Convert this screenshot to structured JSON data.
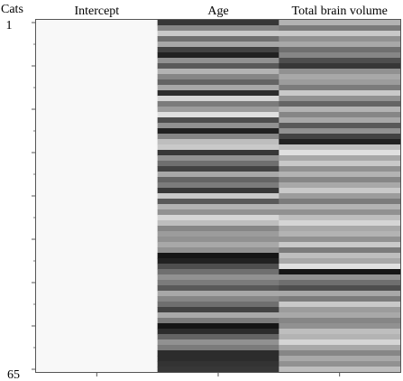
{
  "chart_data": {
    "type": "heatmap",
    "title": "",
    "row_axis_label": "Cats",
    "row_tick_first": "1",
    "row_tick_last": "65",
    "n_rows": 65,
    "columns": [
      "Intercept",
      "Age",
      "Total brain volume"
    ],
    "value_range": [
      0,
      1
    ],
    "colormap": "grayscale: 0 = black, 1 = white",
    "values": [
      [
        1,
        1,
        1,
        1,
        1,
        1,
        1,
        1,
        1,
        1,
        1,
        1,
        1,
        1,
        1,
        1,
        1,
        1,
        1,
        1,
        1,
        1,
        1,
        1,
        1,
        1,
        1,
        1,
        1,
        1,
        1,
        1,
        1,
        1,
        1,
        1,
        1,
        1,
        1,
        1,
        1,
        1,
        1,
        1,
        1,
        1,
        1,
        1,
        1,
        1,
        1,
        1,
        1,
        1,
        1,
        1,
        1,
        1,
        1,
        1,
        1,
        1,
        1,
        1,
        1
      ],
      [
        0.2,
        0.55,
        0.85,
        0.45,
        0.7,
        0.25,
        0.1,
        0.6,
        0.35,
        0.75,
        0.55,
        0.4,
        0.7,
        0.15,
        0.9,
        0.5,
        0.65,
        0.95,
        0.3,
        0.6,
        0.1,
        0.55,
        0.8,
        0.85,
        0.2,
        0.6,
        0.45,
        0.25,
        0.7,
        0.4,
        0.5,
        0.2,
        0.85,
        0.35,
        0.75,
        0.6,
        0.9,
        0.8,
        0.55,
        0.65,
        0.6,
        0.7,
        0.6,
        0.05,
        0.1,
        0.3,
        0.45,
        0.6,
        0.5,
        0.35,
        0.7,
        0.55,
        0.45,
        0.25,
        0.7,
        0.5,
        0.05,
        0.15,
        0.4,
        0.6,
        0.5,
        0.15,
        0.15,
        0.18,
        0.2
      ],
      [
        0.75,
        0.5,
        0.85,
        0.6,
        0.7,
        0.45,
        0.55,
        0.3,
        0.2,
        0.6,
        0.7,
        0.65,
        0.5,
        0.85,
        0.6,
        0.4,
        0.75,
        0.55,
        0.7,
        0.35,
        0.6,
        0.25,
        0.1,
        0.8,
        0.95,
        0.7,
        0.85,
        0.6,
        0.75,
        0.55,
        0.7,
        0.85,
        0.65,
        0.5,
        0.75,
        0.6,
        0.8,
        0.9,
        0.7,
        0.75,
        0.6,
        0.85,
        0.5,
        0.8,
        0.7,
        0.95,
        0.05,
        0.6,
        0.45,
        0.3,
        0.7,
        0.5,
        0.85,
        0.65,
        0.7,
        0.55,
        0.6,
        0.8,
        0.75,
        0.9,
        0.7,
        0.55,
        0.7,
        0.6,
        0.8
      ]
    ]
  }
}
